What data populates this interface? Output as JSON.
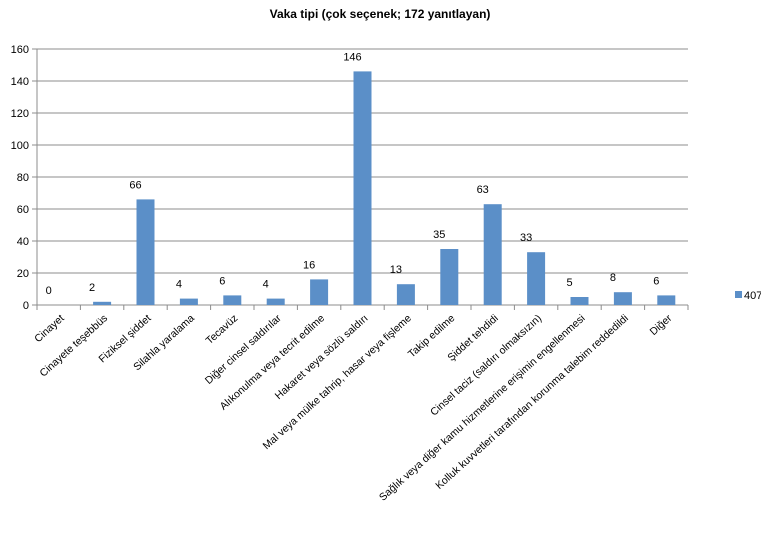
{
  "chart_data": {
    "type": "bar",
    "title": "Vaka tipi (çok seçenek; 172 yanıtlayan)",
    "xlabel": "",
    "ylabel": "",
    "ylim": [
      0,
      160
    ],
    "yticks": [
      0,
      20,
      40,
      60,
      80,
      100,
      120,
      140,
      160
    ],
    "grid": true,
    "legend_position": "right",
    "categories": [
      "Cinayet",
      "Cinayete teşebbüs",
      "Fiziksel şiddet",
      "Silahla yaralama",
      "Tecavüz",
      "Diğer cinsel saldırılar",
      "Alıkonulma veya tecrit edilme",
      "Hakaret veya sözlü saldırı",
      "Mal veya mülke tahrip, hasar veya fişleme",
      "Takip edilme",
      "Şiddet tehdidi",
      "Cinsel taciz (saldırı olmaksızın)",
      "Sağlık veya diğer kamu hizmetlerine erişimin engellenmesi",
      "Kolluk kuvvetleri tarafından korunma talebim reddedildi",
      "Diğer"
    ],
    "series": [
      {
        "name": "407",
        "color": "#5b8fc8",
        "values": [
          0,
          2,
          66,
          4,
          6,
          4,
          16,
          146,
          13,
          35,
          63,
          33,
          5,
          8,
          6
        ]
      }
    ]
  }
}
